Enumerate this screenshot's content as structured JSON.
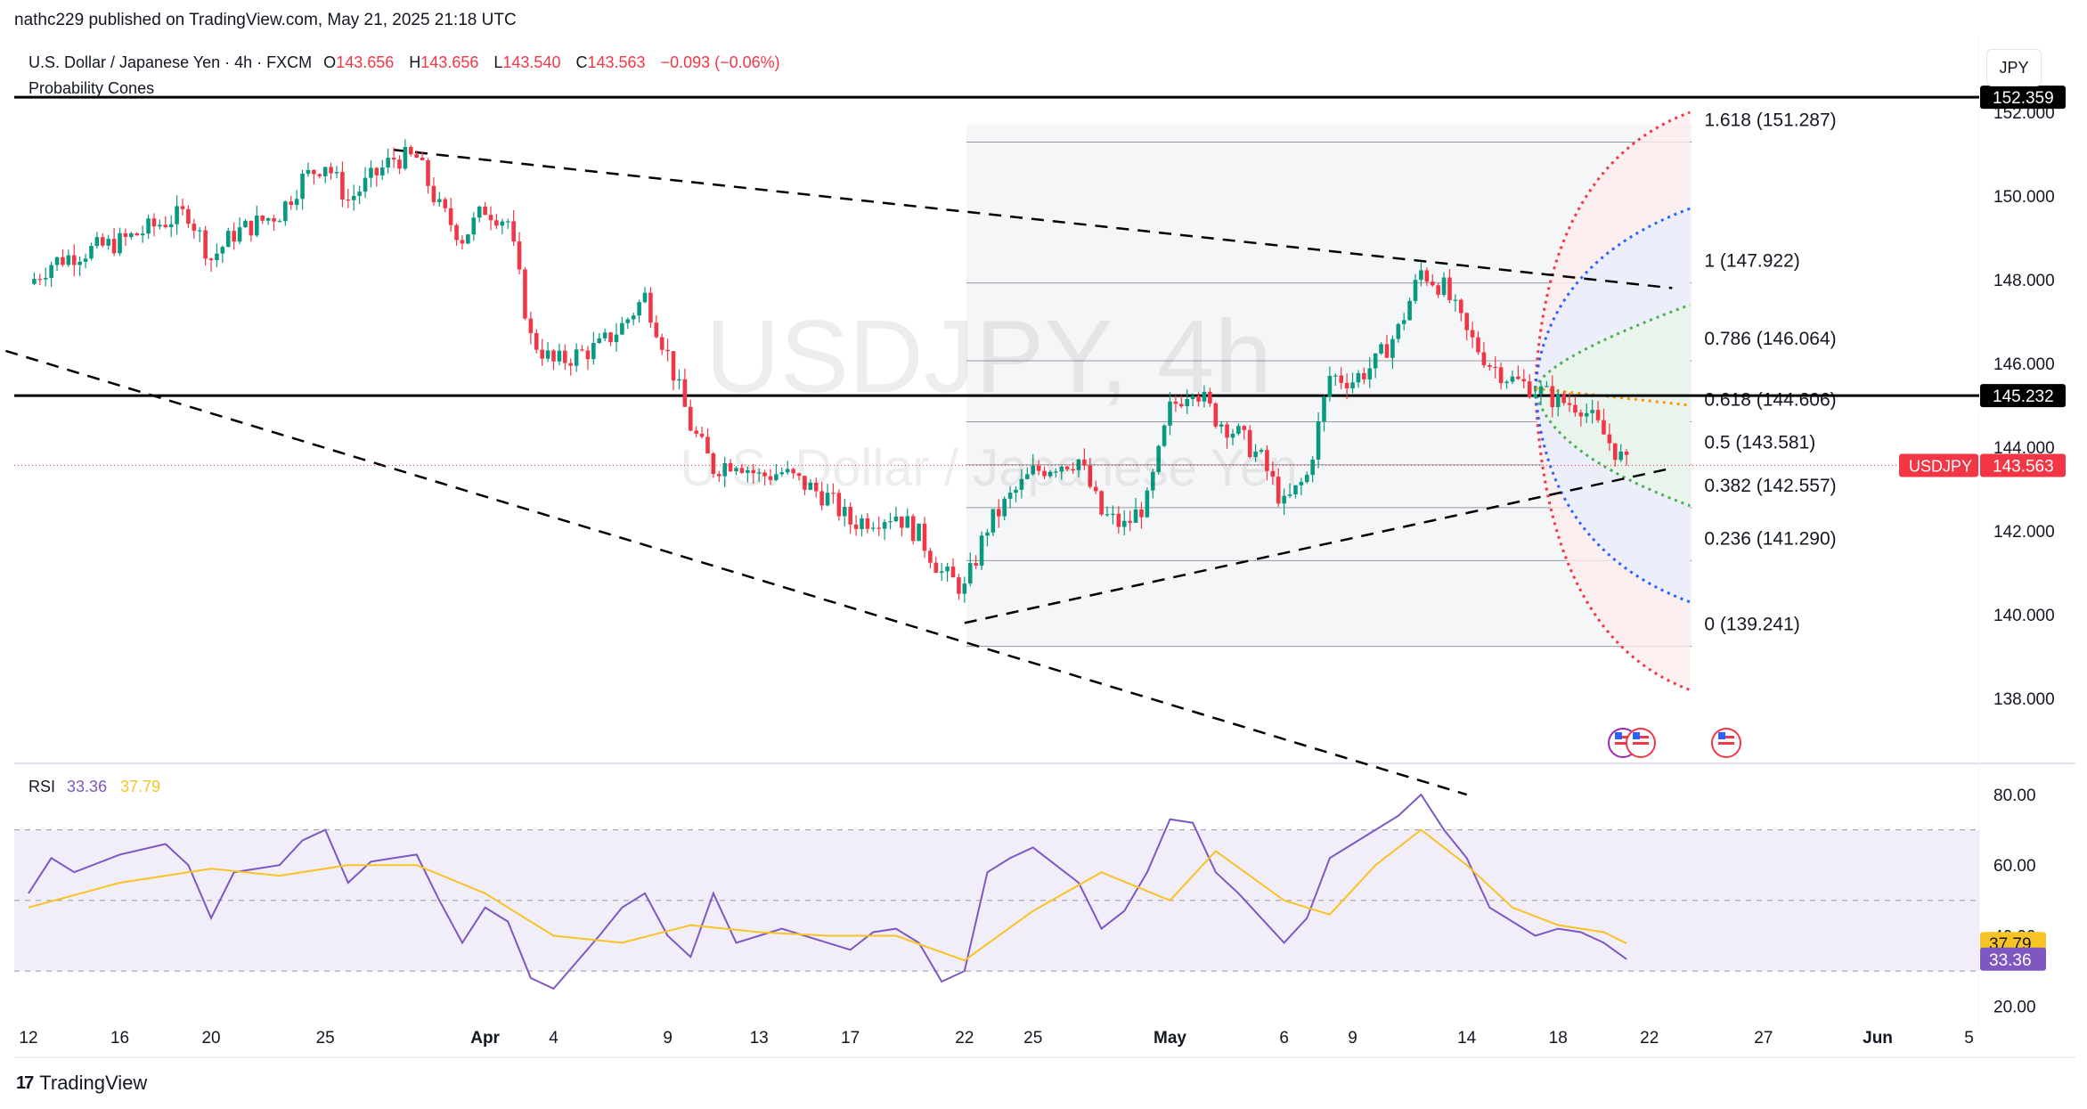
{
  "publisher": "nathc229 published on TradingView.com, May 21, 2025 21:18 UTC",
  "symbol_bar": {
    "name": "U.S. Dollar / Japanese Yen · 4h · FXCM",
    "open_label": "O",
    "open": "143.656",
    "high_label": "H",
    "high": "143.656",
    "low_label": "L",
    "low": "143.540",
    "close_label": "C",
    "close": "143.563",
    "change": "−0.093 (−0.06%)"
  },
  "indicator_label": "Probability Cones",
  "currency_button": "JPY",
  "watermark": {
    "ticker": "USDJPY, 4h",
    "description": "U.S. Dollar / Japanese Yen"
  },
  "brand": "TradingView",
  "colors": {
    "up": "#089981",
    "down": "#f23645",
    "rsi": "#7e57c2",
    "rsi_ma": "#f7c325",
    "accent": "#2962ff"
  },
  "chart_data": [
    {
      "type": "candlestick",
      "title": "U.S. Dollar / Japanese Yen · 4h · FXCM",
      "ylim": [
        137.2,
        153.7
      ],
      "y_ticks": [
        "152.000",
        "150.000",
        "148.000",
        "146.000",
        "144.000",
        "142.000",
        "140.000",
        "138.000"
      ],
      "x_ticks": [
        "12",
        "16",
        "20",
        "25",
        "Apr",
        "4",
        "9",
        "13",
        "17",
        "22",
        "25",
        "May",
        "6",
        "9",
        "14",
        "18",
        "22",
        "27",
        "Jun",
        "5"
      ],
      "close_path": [
        {
          "x": "Mar 12",
          "close": 147.9
        },
        {
          "x": "Mar 13",
          "close": 148.4
        },
        {
          "x": "Mar 14",
          "close": 148.6
        },
        {
          "x": "Mar 16",
          "close": 148.9
        },
        {
          "x": "Mar 18",
          "close": 149.4
        },
        {
          "x": "Mar 19",
          "close": 149.6
        },
        {
          "x": "Mar 20",
          "close": 148.5
        },
        {
          "x": "Mar 21",
          "close": 149.1
        },
        {
          "x": "Mar 23",
          "close": 149.6
        },
        {
          "x": "Mar 24",
          "close": 150.4
        },
        {
          "x": "Mar 25",
          "close": 150.8
        },
        {
          "x": "Mar 26",
          "close": 149.9
        },
        {
          "x": "Mar 27",
          "close": 150.4
        },
        {
          "x": "Mar 28",
          "close": 150.9
        },
        {
          "x": "Mar 29",
          "close": 150.9
        },
        {
          "x": "Mar 30",
          "close": 149.7
        },
        {
          "x": "Mar 31",
          "close": 149.0
        },
        {
          "x": "Apr 1",
          "close": 149.7
        },
        {
          "x": "Apr 2",
          "close": 149.4
        },
        {
          "x": "Apr 3",
          "close": 146.6
        },
        {
          "x": "Apr 4",
          "close": 146.0
        },
        {
          "x": "Apr 6",
          "close": 146.4
        },
        {
          "x": "Apr 7",
          "close": 146.9
        },
        {
          "x": "Apr 8",
          "close": 147.6
        },
        {
          "x": "Apr 9",
          "close": 146.2
        },
        {
          "x": "Apr 10",
          "close": 144.5
        },
        {
          "x": "Apr 11",
          "close": 143.5
        },
        {
          "x": "Apr 12",
          "close": 143.7
        },
        {
          "x": "Apr 13",
          "close": 143.3
        },
        {
          "x": "Apr 14",
          "close": 143.4
        },
        {
          "x": "Apr 16",
          "close": 142.8
        },
        {
          "x": "Apr 17",
          "close": 142.2
        },
        {
          "x": "Apr 18",
          "close": 142.3
        },
        {
          "x": "Apr 19",
          "close": 142.4
        },
        {
          "x": "Apr 20",
          "close": 141.9
        },
        {
          "x": "Apr 21",
          "close": 141.0
        },
        {
          "x": "Apr 22",
          "close": 140.6
        },
        {
          "x": "Apr 23",
          "close": 142.1
        },
        {
          "x": "Apr 24",
          "close": 142.8
        },
        {
          "x": "Apr 25",
          "close": 143.4
        },
        {
          "x": "Apr 26",
          "close": 143.6
        },
        {
          "x": "Apr 27",
          "close": 143.7
        },
        {
          "x": "Apr 28",
          "close": 142.4
        },
        {
          "x": "Apr 29",
          "close": 142.1
        },
        {
          "x": "Apr 30",
          "close": 142.7
        },
        {
          "x": "May 1",
          "close": 144.9
        },
        {
          "x": "May 2",
          "close": 145.5
        },
        {
          "x": "May 3",
          "close": 144.7
        },
        {
          "x": "May 4",
          "close": 144.3
        },
        {
          "x": "May 5",
          "close": 143.7
        },
        {
          "x": "May 6",
          "close": 142.6
        },
        {
          "x": "May 7",
          "close": 143.3
        },
        {
          "x": "May 8",
          "close": 145.7
        },
        {
          "x": "May 9",
          "close": 145.6
        },
        {
          "x": "May 10",
          "close": 146.0
        },
        {
          "x": "May 11",
          "close": 146.8
        },
        {
          "x": "May 12",
          "close": 148.2
        },
        {
          "x": "May 13",
          "close": 147.8
        },
        {
          "x": "May 14",
          "close": 146.7
        },
        {
          "x": "May 15",
          "close": 146.0
        },
        {
          "x": "May 16",
          "close": 145.6
        },
        {
          "x": "May 17",
          "close": 145.4
        },
        {
          "x": "May 18",
          "close": 145.1
        },
        {
          "x": "May 19",
          "close": 145.0
        },
        {
          "x": "May 20",
          "close": 144.3
        },
        {
          "x": "May 21",
          "close": 143.56
        }
      ],
      "last_close": {
        "label": "USDJPY",
        "value": "143.563"
      },
      "horizontal_lines": [
        {
          "value": 152.359,
          "label": "152.359"
        },
        {
          "value": 145.232,
          "label": "145.232"
        }
      ],
      "fibonacci": [
        {
          "level": "1.618",
          "price": 151.287,
          "label": "1.618 (151.287)"
        },
        {
          "level": "1",
          "price": 147.922,
          "label": "1 (147.922)"
        },
        {
          "level": "0.786",
          "price": 146.064,
          "label": "0.786 (146.064)"
        },
        {
          "level": "0.618",
          "price": 144.606,
          "label": "0.618 (144.606)"
        },
        {
          "level": "0.5",
          "price": 143.581,
          "label": "0.5 (143.581)"
        },
        {
          "level": "0.382",
          "price": 142.557,
          "label": "0.382 (142.557)"
        },
        {
          "level": "0.236",
          "price": 141.29,
          "label": "0.236 (141.290)"
        },
        {
          "level": "0",
          "price": 139.241,
          "label": "0 (139.241)"
        }
      ],
      "trendlines": [
        {
          "name": "upper-descending",
          "from": [
            "Mar 28",
            151.1
          ],
          "to": [
            "May 23",
            147.8
          ]
        },
        {
          "name": "lower-descending",
          "from": [
            "Mar 11",
            146.3
          ],
          "to": [
            "May 14",
            135.7
          ]
        },
        {
          "name": "rising-support",
          "from": [
            "Apr 22",
            139.8
          ],
          "to": [
            "May 23",
            143.5
          ]
        }
      ],
      "probability_cones": {
        "origin": [
          "May 17",
          145.4
        ],
        "end": "May 23",
        "cones": [
          {
            "name": "outer",
            "color": "#f23645",
            "upper": 152.0,
            "lower": 138.2
          },
          {
            "name": "middle",
            "color": "#2962ff",
            "upper": 149.7,
            "lower": 140.3
          },
          {
            "name": "inner",
            "color": "#4caf50",
            "upper": 147.4,
            "lower": 142.6
          },
          {
            "name": "median",
            "color": "#ff9800",
            "value": 145.0
          }
        ]
      }
    },
    {
      "type": "line",
      "title": "RSI",
      "ylim": [
        16,
        86
      ],
      "y_ticks": [
        "80.00",
        "60.00",
        "40.00",
        "20.00"
      ],
      "bands": [
        70,
        50,
        30
      ],
      "series": [
        {
          "name": "RSI",
          "value_label": "33.36",
          "color": "#7e57c2",
          "points": [
            {
              "x": "Mar 12",
              "y": 52
            },
            {
              "x": "Mar 13",
              "y": 62
            },
            {
              "x": "Mar 14",
              "y": 58
            },
            {
              "x": "Mar 16",
              "y": 63
            },
            {
              "x": "Mar 18",
              "y": 66
            },
            {
              "x": "Mar 19",
              "y": 60
            },
            {
              "x": "Mar 20",
              "y": 45
            },
            {
              "x": "Mar 21",
              "y": 58
            },
            {
              "x": "Mar 23",
              "y": 60
            },
            {
              "x": "Mar 24",
              "y": 67
            },
            {
              "x": "Mar 25",
              "y": 70
            },
            {
              "x": "Mar 26",
              "y": 55
            },
            {
              "x": "Mar 27",
              "y": 61
            },
            {
              "x": "Mar 28",
              "y": 62
            },
            {
              "x": "Mar 29",
              "y": 63
            },
            {
              "x": "Mar 30",
              "y": 50
            },
            {
              "x": "Mar 31",
              "y": 38
            },
            {
              "x": "Apr 1",
              "y": 48
            },
            {
              "x": "Apr 2",
              "y": 44
            },
            {
              "x": "Apr 3",
              "y": 28
            },
            {
              "x": "Apr 4",
              "y": 25
            },
            {
              "x": "Apr 6",
              "y": 40
            },
            {
              "x": "Apr 7",
              "y": 48
            },
            {
              "x": "Apr 8",
              "y": 52
            },
            {
              "x": "Apr 9",
              "y": 40
            },
            {
              "x": "Apr 10",
              "y": 34
            },
            {
              "x": "Apr 11",
              "y": 52
            },
            {
              "x": "Apr 12",
              "y": 38
            },
            {
              "x": "Apr 13",
              "y": 40
            },
            {
              "x": "Apr 14",
              "y": 42
            },
            {
              "x": "Apr 16",
              "y": 38
            },
            {
              "x": "Apr 17",
              "y": 36
            },
            {
              "x": "Apr 18",
              "y": 41
            },
            {
              "x": "Apr 19",
              "y": 42
            },
            {
              "x": "Apr 20",
              "y": 38
            },
            {
              "x": "Apr 21",
              "y": 27
            },
            {
              "x": "Apr 22",
              "y": 30
            },
            {
              "x": "Apr 23",
              "y": 58
            },
            {
              "x": "Apr 24",
              "y": 62
            },
            {
              "x": "Apr 25",
              "y": 65
            },
            {
              "x": "Apr 26",
              "y": 60
            },
            {
              "x": "Apr 27",
              "y": 55
            },
            {
              "x": "Apr 28",
              "y": 42
            },
            {
              "x": "Apr 29",
              "y": 47
            },
            {
              "x": "Apr 30",
              "y": 58
            },
            {
              "x": "May 1",
              "y": 73
            },
            {
              "x": "May 2",
              "y": 72
            },
            {
              "x": "May 3",
              "y": 58
            },
            {
              "x": "May 4",
              "y": 52
            },
            {
              "x": "May 5",
              "y": 45
            },
            {
              "x": "May 6",
              "y": 38
            },
            {
              "x": "May 7",
              "y": 45
            },
            {
              "x": "May 8",
              "y": 62
            },
            {
              "x": "May 9",
              "y": 66
            },
            {
              "x": "May 10",
              "y": 70
            },
            {
              "x": "May 11",
              "y": 74
            },
            {
              "x": "May 12",
              "y": 80
            },
            {
              "x": "May 13",
              "y": 70
            },
            {
              "x": "May 14",
              "y": 62
            },
            {
              "x": "May 15",
              "y": 48
            },
            {
              "x": "May 16",
              "y": 44
            },
            {
              "x": "May 17",
              "y": 40
            },
            {
              "x": "May 18",
              "y": 42
            },
            {
              "x": "May 19",
              "y": 41
            },
            {
              "x": "May 20",
              "y": 38
            },
            {
              "x": "May 21",
              "y": 33.36
            }
          ]
        },
        {
          "name": "RSI-based MA",
          "value_label": "37.79",
          "color": "#f7c325",
          "points": [
            {
              "x": "Mar 12",
              "y": 48
            },
            {
              "x": "Mar 16",
              "y": 55
            },
            {
              "x": "Mar 20",
              "y": 59
            },
            {
              "x": "Mar 23",
              "y": 57
            },
            {
              "x": "Mar 26",
              "y": 60
            },
            {
              "x": "Mar 29",
              "y": 60
            },
            {
              "x": "Apr 1",
              "y": 52
            },
            {
              "x": "Apr 4",
              "y": 40
            },
            {
              "x": "Apr 7",
              "y": 38
            },
            {
              "x": "Apr 10",
              "y": 43
            },
            {
              "x": "Apr 13",
              "y": 41
            },
            {
              "x": "Apr 16",
              "y": 40
            },
            {
              "x": "Apr 19",
              "y": 40
            },
            {
              "x": "Apr 22",
              "y": 33
            },
            {
              "x": "Apr 25",
              "y": 47
            },
            {
              "x": "Apr 28",
              "y": 58
            },
            {
              "x": "May 1",
              "y": 50
            },
            {
              "x": "May 3",
              "y": 64
            },
            {
              "x": "May 6",
              "y": 50
            },
            {
              "x": "May 8",
              "y": 46
            },
            {
              "x": "May 10",
              "y": 60
            },
            {
              "x": "May 12",
              "y": 70
            },
            {
              "x": "May 14",
              "y": 60
            },
            {
              "x": "May 16",
              "y": 48
            },
            {
              "x": "May 18",
              "y": 43
            },
            {
              "x": "May 20",
              "y": 41
            },
            {
              "x": "May 21",
              "y": 37.79
            }
          ]
        }
      ]
    }
  ]
}
